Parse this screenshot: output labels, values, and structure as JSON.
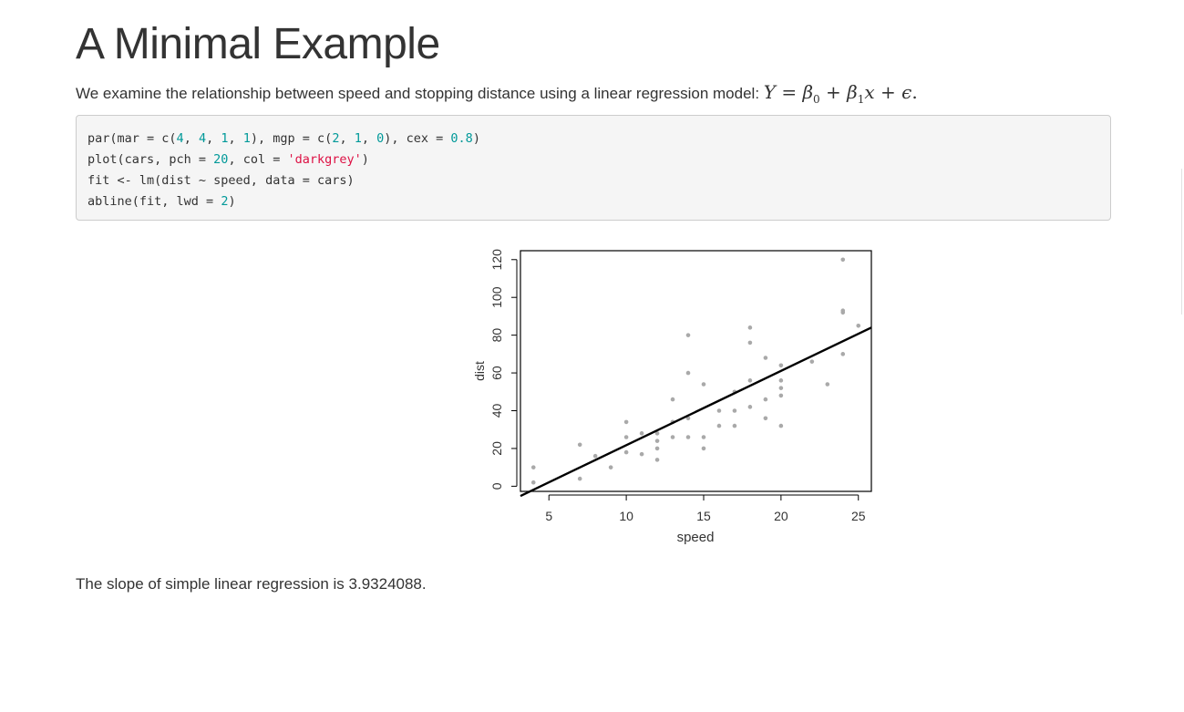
{
  "page": {
    "title": "A Minimal Example",
    "intro_text": "We examine the relationship between speed and stopping distance using a linear regression model: ",
    "formula": {
      "y": "Y",
      "eq": " = ",
      "b": "β",
      "sub0": "0",
      "plus1": " + ",
      "sub1": "1",
      "x": "x",
      "plus2": " + ",
      "eps": "ϵ",
      "end": "."
    },
    "code_lines": [
      [
        {
          "t": "par(mar = c(",
          "c": ""
        },
        {
          "t": "4",
          "c": "num"
        },
        {
          "t": ", ",
          "c": ""
        },
        {
          "t": "4",
          "c": "num"
        },
        {
          "t": ", ",
          "c": ""
        },
        {
          "t": "1",
          "c": "num"
        },
        {
          "t": ", ",
          "c": ""
        },
        {
          "t": "1",
          "c": "num"
        },
        {
          "t": "), mgp = c(",
          "c": ""
        },
        {
          "t": "2",
          "c": "num"
        },
        {
          "t": ", ",
          "c": ""
        },
        {
          "t": "1",
          "c": "num"
        },
        {
          "t": ", ",
          "c": ""
        },
        {
          "t": "0",
          "c": "num"
        },
        {
          "t": "), cex = ",
          "c": ""
        },
        {
          "t": "0.8",
          "c": "num"
        },
        {
          "t": ")",
          "c": ""
        }
      ],
      [
        {
          "t": "plot(cars, pch = ",
          "c": ""
        },
        {
          "t": "20",
          "c": "num"
        },
        {
          "t": ", col = ",
          "c": ""
        },
        {
          "t": "'darkgrey'",
          "c": "str"
        },
        {
          "t": ")",
          "c": ""
        }
      ],
      [
        {
          "t": "fit <- lm(dist ~ speed, data = cars)",
          "c": ""
        }
      ],
      [
        {
          "t": "abline(fit, lwd = ",
          "c": ""
        },
        {
          "t": "2",
          "c": "num"
        },
        {
          "t": ")",
          "c": ""
        }
      ]
    ],
    "conclusion": "The slope of simple linear regression is 3.9324088."
  },
  "chart_data": {
    "type": "scatter",
    "title": "",
    "xlabel": "speed",
    "ylabel": "dist",
    "xlim": [
      3.16,
      25.84
    ],
    "ylim": [
      -2.72,
      124.72
    ],
    "xticks": [
      5,
      10,
      15,
      20,
      25
    ],
    "yticks": [
      0,
      20,
      40,
      60,
      80,
      100,
      120
    ],
    "point_color": "#a9a9a9",
    "line_color": "#000000",
    "regression": {
      "intercept": -17.5790949,
      "slope": 3.9324088
    },
    "points": [
      [
        4,
        2
      ],
      [
        4,
        10
      ],
      [
        7,
        4
      ],
      [
        7,
        22
      ],
      [
        8,
        16
      ],
      [
        9,
        10
      ],
      [
        10,
        18
      ],
      [
        10,
        26
      ],
      [
        10,
        34
      ],
      [
        11,
        17
      ],
      [
        11,
        28
      ],
      [
        12,
        14
      ],
      [
        12,
        20
      ],
      [
        12,
        24
      ],
      [
        12,
        28
      ],
      [
        13,
        26
      ],
      [
        13,
        34
      ],
      [
        13,
        34
      ],
      [
        13,
        46
      ],
      [
        14,
        26
      ],
      [
        14,
        36
      ],
      [
        14,
        60
      ],
      [
        14,
        80
      ],
      [
        15,
        20
      ],
      [
        15,
        26
      ],
      [
        15,
        54
      ],
      [
        16,
        32
      ],
      [
        16,
        40
      ],
      [
        17,
        32
      ],
      [
        17,
        40
      ],
      [
        17,
        50
      ],
      [
        18,
        42
      ],
      [
        18,
        56
      ],
      [
        18,
        76
      ],
      [
        18,
        84
      ],
      [
        19,
        36
      ],
      [
        19,
        46
      ],
      [
        19,
        68
      ],
      [
        20,
        32
      ],
      [
        20,
        48
      ],
      [
        20,
        52
      ],
      [
        20,
        56
      ],
      [
        20,
        64
      ],
      [
        22,
        66
      ],
      [
        23,
        54
      ],
      [
        24,
        70
      ],
      [
        24,
        92
      ],
      [
        24,
        93
      ],
      [
        24,
        120
      ],
      [
        25,
        85
      ]
    ]
  }
}
